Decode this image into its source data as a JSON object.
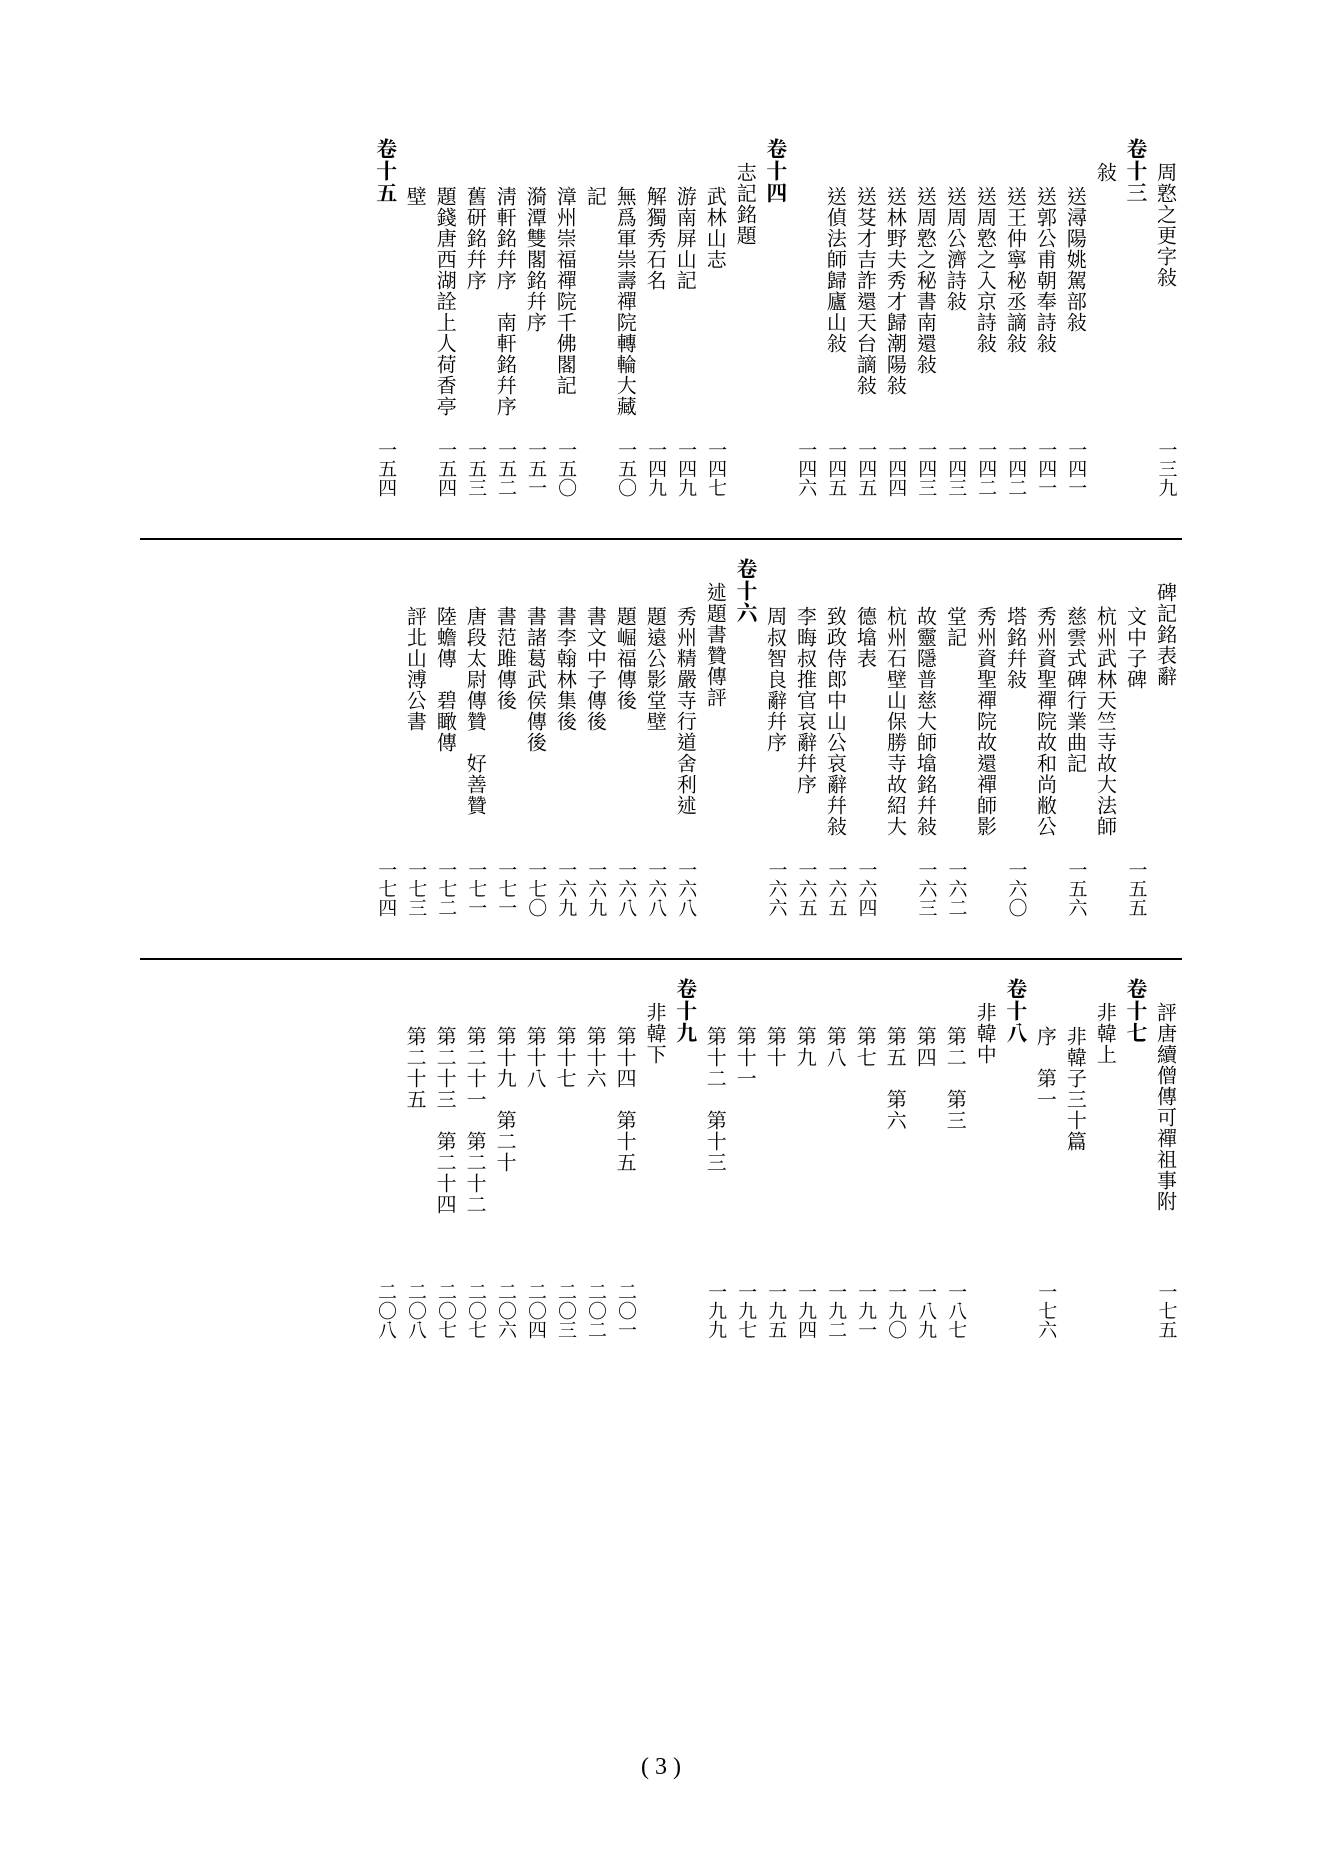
{
  "page_number": "( 3 )",
  "text_color": "#000000",
  "background_color": "#ffffff",
  "divider_color": "#000000",
  "font_size_body": 20,
  "font_size_heading": 21,
  "font_size_page": 19,
  "sections": [
    {
      "columns": [
        {
          "title": "周憝之更字敍",
          "page": "一三九",
          "indent": 1
        },
        {
          "title": "卷十三",
          "page": "",
          "heading": true
        },
        {
          "title": "敍",
          "page": "",
          "indent": 1
        },
        {
          "title": "送潯陽姚駕部敍",
          "page": "一四一",
          "indent": 2
        },
        {
          "title": "送郭公甫朝奉詩敍",
          "page": "一四一",
          "indent": 2
        },
        {
          "title": "送王仲寧秘丞謫敍",
          "page": "一四二",
          "indent": 2
        },
        {
          "title": "送周憝之入京詩敍",
          "page": "一四二",
          "indent": 2
        },
        {
          "title": "送周公濟詩敍",
          "page": "一四三",
          "indent": 2
        },
        {
          "title": "送周憝之秘書南還敍",
          "page": "一四三",
          "indent": 2
        },
        {
          "title": "送林野夫秀才歸潮陽敍",
          "page": "一四四",
          "indent": 2
        },
        {
          "title": "送芟才吉詐還天台謫敍",
          "page": "一四五",
          "indent": 2
        },
        {
          "title": "送偵法師歸廬山敍",
          "page": "一四五",
          "indent": 2
        },
        {
          "title": "",
          "page": "一四六"
        },
        {
          "title": "卷十四",
          "page": "",
          "heading": true
        },
        {
          "title": "志記銘題",
          "page": "",
          "indent": 1
        },
        {
          "title": "武林山志",
          "page": "一四七",
          "indent": 2
        },
        {
          "title": "游南屏山記",
          "page": "一四九",
          "indent": 2
        },
        {
          "title": "解獨秀石名",
          "page": "一四九",
          "indent": 2
        },
        {
          "title": "無爲軍祟壽禪院轉輪大藏",
          "page": "一五〇",
          "indent": 2
        },
        {
          "title": "記",
          "page": "",
          "indent": 2
        },
        {
          "title": "漳州崇福禪院千佛閣記",
          "page": "一五〇",
          "indent": 2
        },
        {
          "title": "漪潭雙閣銘幷序",
          "page": "一五一",
          "indent": 2
        },
        {
          "title": "淸軒銘幷序　南軒銘幷序",
          "page": "一五二",
          "indent": 2
        },
        {
          "title": "舊研銘幷序",
          "page": "一五三",
          "indent": 2
        },
        {
          "title": "題錢唐西湖詮上人荷香亭",
          "page": "一五四",
          "indent": 2
        },
        {
          "title": "壁",
          "page": "",
          "indent": 2
        },
        {
          "title": "卷十五",
          "page": "一五四",
          "heading": true
        }
      ]
    },
    {
      "columns": [
        {
          "title": "碑記銘表辭",
          "page": "",
          "indent": 1
        },
        {
          "title": "文中子碑",
          "page": "一五五",
          "indent": 2
        },
        {
          "title": "杭州武林天竺寺故大法師",
          "page": "",
          "indent": 2
        },
        {
          "title": "慈雲式碑行業曲記",
          "page": "一五六",
          "indent": 2
        },
        {
          "title": "秀州資聖禪院故和尚敝公",
          "page": "",
          "indent": 2
        },
        {
          "title": "塔銘幷敍",
          "page": "一六〇",
          "indent": 2
        },
        {
          "title": "秀州資聖禪院故還禪師影",
          "page": "",
          "indent": 2
        },
        {
          "title": "堂記",
          "page": "一六二",
          "indent": 2
        },
        {
          "title": "故靈隱普慈大師墖銘幷敍",
          "page": "一六三",
          "indent": 2
        },
        {
          "title": "杭州石壁山保勝寺故紹大",
          "page": "",
          "indent": 2
        },
        {
          "title": "德墖表",
          "page": "一六四",
          "indent": 2
        },
        {
          "title": "致政侍郎中山公哀辭幷敍",
          "page": "一六五",
          "indent": 2
        },
        {
          "title": "李晦叔推官哀辭幷序",
          "page": "一六五",
          "indent": 2
        },
        {
          "title": "周叔智良辭幷序",
          "page": "一六六",
          "indent": 2
        },
        {
          "title": "卷十六",
          "page": "",
          "heading": true
        },
        {
          "title": "述題書贊傳評",
          "page": "",
          "indent": 1
        },
        {
          "title": "秀州精嚴寺行道舍利述",
          "page": "一六八",
          "indent": 2
        },
        {
          "title": "題遠公影堂壁",
          "page": "一六八",
          "indent": 2
        },
        {
          "title": "題崛福傳後",
          "page": "一六八",
          "indent": 2
        },
        {
          "title": "書文中子傳後",
          "page": "一六九",
          "indent": 2
        },
        {
          "title": "書李翰林集後",
          "page": "一六九",
          "indent": 2
        },
        {
          "title": "書諸葛武侯傳後",
          "page": "一七〇",
          "indent": 2
        },
        {
          "title": "書范雎傳後",
          "page": "一七一",
          "indent": 2
        },
        {
          "title": "唐段太尉傳贊　好善贊",
          "page": "一七一",
          "indent": 2
        },
        {
          "title": "陸蟾傳　碧瞰傳",
          "page": "一七二",
          "indent": 2
        },
        {
          "title": "評北山溥公書",
          "page": "一七三",
          "indent": 2
        },
        {
          "title": "",
          "page": "一七四"
        }
      ]
    },
    {
      "columns": [
        {
          "title": "評唐續僧傳可禪祖事附",
          "page": "一七五",
          "indent": 1
        },
        {
          "title": "卷十七",
          "page": "",
          "heading": true
        },
        {
          "title": "非韓上",
          "page": "",
          "indent": 1
        },
        {
          "title": "非韓子三十篇",
          "page": "",
          "indent": 2
        },
        {
          "title": "序　第一",
          "page": "一七六",
          "indent": 2
        },
        {
          "title": "卷十八",
          "page": "",
          "heading": true
        },
        {
          "title": "非韓中",
          "page": "",
          "indent": 1
        },
        {
          "title": "第二　第三",
          "page": "一八七",
          "indent": 2
        },
        {
          "title": "第四",
          "page": "一八九",
          "indent": 2
        },
        {
          "title": "第五　第六",
          "page": "一九〇",
          "indent": 2
        },
        {
          "title": "第七",
          "page": "一九一",
          "indent": 2
        },
        {
          "title": "第八",
          "page": "一九二",
          "indent": 2
        },
        {
          "title": "第九",
          "page": "一九四",
          "indent": 2
        },
        {
          "title": "第十",
          "page": "一九五",
          "indent": 2
        },
        {
          "title": "第十一",
          "page": "一九七",
          "indent": 2
        },
        {
          "title": "第十二　第十三",
          "page": "一九九",
          "indent": 2
        },
        {
          "title": "卷十九",
          "page": "",
          "heading": true
        },
        {
          "title": "非韓下",
          "page": "",
          "indent": 1
        },
        {
          "title": "第十四　第十五",
          "page": "二〇一",
          "indent": 2
        },
        {
          "title": "第十六",
          "page": "二〇二",
          "indent": 2
        },
        {
          "title": "第十七",
          "page": "二〇三",
          "indent": 2
        },
        {
          "title": "第十八",
          "page": "二〇四",
          "indent": 2
        },
        {
          "title": "第十九　第二十",
          "page": "二〇六",
          "indent": 2
        },
        {
          "title": "第二十一　第二十二",
          "page": "二〇七",
          "indent": 2
        },
        {
          "title": "第二十三　第二十四",
          "page": "二〇七",
          "indent": 2
        },
        {
          "title": "第二十五",
          "page": "二〇八",
          "indent": 2
        },
        {
          "title": "",
          "page": "二〇八"
        }
      ]
    }
  ]
}
